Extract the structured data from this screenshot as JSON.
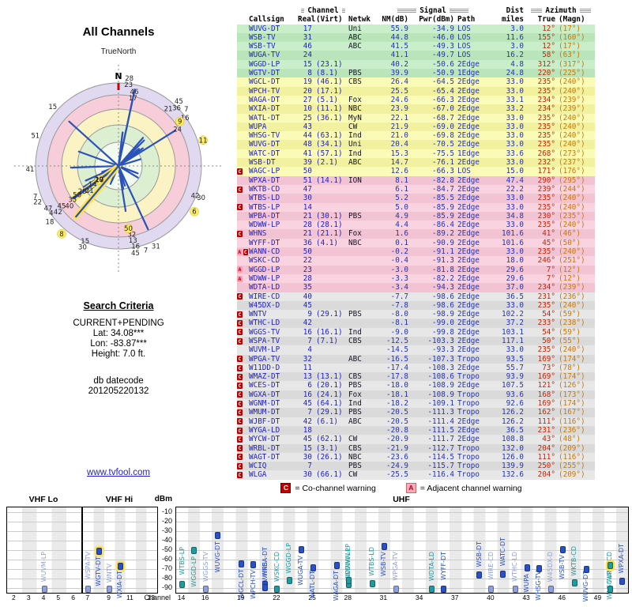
{
  "radar": {
    "title": "All Channels",
    "north_label": "TrueNorth",
    "compass_n": "N",
    "ring_colors": [
      "#e0d9f0",
      "#f6cdd9",
      "#fbf3c4",
      "#dcefd0",
      "#f2f9ee"
    ],
    "spoke_color": "#2a52b8",
    "highlight_color": "#ffe14d"
  },
  "search": {
    "heading": "Search Criteria",
    "mode": "CURRENT+PENDING",
    "lat": "Lat: 34.08***",
    "lon": "Lon: -83.87***",
    "height": "Height: 7.0 ft.",
    "datecode_label": "db datecode",
    "datecode": "201205220132",
    "link": "www.tvfool.com"
  },
  "table": {
    "headers": {
      "channel_group": "Channel",
      "signal_group": "Signal",
      "dist_group": "Dist",
      "azimuth_group": "Azimuth",
      "callsign": "Callsign",
      "real": "Real",
      "virt": "(Virt)",
      "netwk": "Netwk",
      "nm": "NM(dB)",
      "pwr": "Pwr(dBm)",
      "path": "Path",
      "miles": "miles",
      "true_label": "True",
      "magn": "(Magn)"
    },
    "rows": [
      {
        "warn": "",
        "callsign": "WUVG-DT",
        "real": "17",
        "virt": "",
        "netwk": "Uni",
        "nm": "55.9",
        "pwr": "-34.9",
        "path": "LOS",
        "dist": "3.0",
        "true": "12°",
        "magn": "(17°)",
        "tier": "g"
      },
      {
        "warn": "",
        "callsign": "WSB-TV",
        "real": "31",
        "virt": "",
        "netwk": "ABC",
        "nm": "44.8",
        "pwr": "-46.0",
        "path": "LOS",
        "dist": "11.6",
        "true": "155°",
        "magn": "(160°)",
        "tier": "g"
      },
      {
        "warn": "",
        "callsign": "WSB-TV",
        "real": "46",
        "virt": "",
        "netwk": "ABC",
        "nm": "41.5",
        "pwr": "-49.3",
        "path": "LOS",
        "dist": "3.0",
        "true": "12°",
        "magn": "(17°)",
        "tier": "g"
      },
      {
        "warn": "",
        "callsign": "WUGA-TV",
        "real": "24",
        "virt": "",
        "netwk": "",
        "nm": "41.1",
        "pwr": "-49.7",
        "path": "LOS",
        "dist": "16.2",
        "true": "58°",
        "magn": "(63°)",
        "tier": "g"
      },
      {
        "warn": "",
        "callsign": "WGGD-LP",
        "real": "15",
        "virt": "(23.1)",
        "netwk": "",
        "nm": "40.2",
        "pwr": "-50.6",
        "path": "2Edge",
        "dist": "4.8",
        "true": "312°",
        "magn": "(317°)",
        "tier": "g"
      },
      {
        "warn": "",
        "callsign": "WGTV-DT",
        "real": "8",
        "virt": "(8.1)",
        "netwk": "PBS",
        "nm": "39.9",
        "pwr": "-50.9",
        "path": "1Edge",
        "dist": "24.8",
        "true": "220°",
        "magn": "(225°)",
        "tier": "g",
        "hl": true
      },
      {
        "warn": "",
        "callsign": "WGCL-DT",
        "real": "19",
        "virt": "(46.1)",
        "netwk": "CBS",
        "nm": "26.4",
        "pwr": "-64.5",
        "path": "2Edge",
        "dist": "33.0",
        "true": "235°",
        "magn": "(240°)",
        "tier": "y"
      },
      {
        "warn": "",
        "callsign": "WPCH-TV",
        "real": "20",
        "virt": "(17.1)",
        "netwk": "",
        "nm": "25.5",
        "pwr": "-65.4",
        "path": "2Edge",
        "dist": "33.0",
        "true": "235°",
        "magn": "(240°)",
        "tier": "y"
      },
      {
        "warn": "",
        "callsign": "WAGA-DT",
        "real": "27",
        "virt": "(5.1)",
        "netwk": "Fox",
        "nm": "24.6",
        "pwr": "-66.3",
        "path": "2Edge",
        "dist": "33.1",
        "true": "234°",
        "magn": "(239°)",
        "tier": "y"
      },
      {
        "warn": "",
        "callsign": "WXIA-DT",
        "real": "10",
        "virt": "(11.1)",
        "netwk": "NBC",
        "nm": "23.9",
        "pwr": "-67.0",
        "path": "2Edge",
        "dist": "33.2",
        "true": "234°",
        "magn": "(239°)",
        "tier": "y",
        "hl": true
      },
      {
        "warn": "",
        "callsign": "WATL-DT",
        "real": "25",
        "virt": "(36.1)",
        "netwk": "MyN",
        "nm": "22.1",
        "pwr": "-68.7",
        "path": "2Edge",
        "dist": "33.0",
        "true": "235°",
        "magn": "(240°)",
        "tier": "y"
      },
      {
        "warn": "",
        "callsign": "WUPA",
        "real": "43",
        "virt": "",
        "netwk": "CW",
        "nm": "21.9",
        "pwr": "-69.0",
        "path": "2Edge",
        "dist": "33.0",
        "true": "235°",
        "magn": "(240°)",
        "tier": "y"
      },
      {
        "warn": "",
        "callsign": "WHSG-TV",
        "real": "44",
        "virt": "(63.1)",
        "netwk": "Ind",
        "nm": "21.0",
        "pwr": "-69.8",
        "path": "2Edge",
        "dist": "33.0",
        "true": "235°",
        "magn": "(240°)",
        "tier": "y"
      },
      {
        "warn": "",
        "callsign": "WUVG-DT",
        "real": "48",
        "virt": "(34.1)",
        "netwk": "Uni",
        "nm": "20.4",
        "pwr": "-70.5",
        "path": "2Edge",
        "dist": "33.0",
        "true": "235°",
        "magn": "(240°)",
        "tier": "y"
      },
      {
        "warn": "",
        "callsign": "WATC-DT",
        "real": "41",
        "virt": "(57.1)",
        "netwk": "Ind",
        "nm": "15.3",
        "pwr": "-75.5",
        "path": "1Edge",
        "dist": "33.6",
        "true": "268°",
        "magn": "(273°)",
        "tier": "y"
      },
      {
        "warn": "",
        "callsign": "WSB-DT",
        "real": "39",
        "virt": "(2.1)",
        "netwk": "ABC",
        "nm": "14.7",
        "pwr": "-76.1",
        "path": "2Edge",
        "dist": "33.0",
        "true": "232°",
        "magn": "(237°)",
        "tier": "y"
      },
      {
        "warn": "C",
        "callsign": "WAGC-LP",
        "real": "50",
        "virt": "",
        "netwk": "",
        "nm": "12.6",
        "pwr": "-66.3",
        "path": "LOS",
        "dist": "15.0",
        "true": "171°",
        "magn": "(176°)",
        "tier": "y",
        "hl": true
      },
      {
        "warn": "",
        "callsign": "WPXA-DT",
        "real": "51",
        "virt": "(14.1)",
        "netwk": "ION",
        "nm": "8.1",
        "pwr": "-82.8",
        "path": "2Edge",
        "dist": "47.4",
        "true": "290°",
        "magn": "(295°)",
        "tier": "p"
      },
      {
        "warn": "C",
        "callsign": "WKTB-CD",
        "real": "47",
        "virt": "",
        "netwk": "",
        "nm": "6.1",
        "pwr": "-84.7",
        "path": "2Edge",
        "dist": "22.2",
        "true": "239°",
        "magn": "(244°)",
        "tier": "p"
      },
      {
        "warn": "",
        "callsign": "WTBS-LD",
        "real": "30",
        "virt": "",
        "netwk": "",
        "nm": "5.2",
        "pwr": "-85.5",
        "path": "2Edge",
        "dist": "33.0",
        "true": "235°",
        "magn": "(240°)",
        "tier": "p"
      },
      {
        "warn": "C",
        "callsign": "WTBS-LP",
        "real": "14",
        "virt": "",
        "netwk": "",
        "nm": "5.0",
        "pwr": "-85.9",
        "path": "2Edge",
        "dist": "33.0",
        "true": "235°",
        "magn": "(240°)",
        "tier": "p"
      },
      {
        "warn": "",
        "callsign": "WPBA-DT",
        "real": "21",
        "virt": "(30.1)",
        "netwk": "PBS",
        "nm": "4.9",
        "pwr": "-85.9",
        "path": "2Edge",
        "dist": "34.8",
        "true": "230°",
        "magn": "(235°)",
        "tier": "p"
      },
      {
        "warn": "",
        "callsign": "WDWW-LP",
        "real": "28",
        "virt": "(28.1)",
        "netwk": "",
        "nm": "4.4",
        "pwr": "-86.4",
        "path": "2Edge",
        "dist": "33.0",
        "true": "235°",
        "magn": "(240°)",
        "tier": "p"
      },
      {
        "warn": "C",
        "callsign": "WHNS",
        "real": "21",
        "virt": "(21.1)",
        "netwk": "Fox",
        "nm": "1.6",
        "pwr": "-89.2",
        "path": "2Edge",
        "dist": "101.6",
        "true": "41°",
        "magn": "(46°)",
        "tier": "p"
      },
      {
        "warn": "",
        "callsign": "WYFF-DT",
        "real": "36",
        "virt": "(4.1)",
        "netwk": "NBC",
        "nm": "0.1",
        "pwr": "-90.9",
        "path": "2Edge",
        "dist": "101.6",
        "true": "45°",
        "magn": "(50°)",
        "tier": "p"
      },
      {
        "warn": "AC",
        "callsign": "WANN-CD",
        "real": "50",
        "virt": "",
        "netwk": "",
        "nm": "-0.2",
        "pwr": "-91.1",
        "path": "2Edge",
        "dist": "33.0",
        "true": "235°",
        "magn": "(240°)",
        "tier": "p"
      },
      {
        "warn": "",
        "callsign": "WSKC-CD",
        "real": "22",
        "virt": "",
        "netwk": "",
        "nm": "-0.4",
        "pwr": "-91.3",
        "path": "2Edge",
        "dist": "18.0",
        "true": "246°",
        "magn": "(251°)",
        "tier": "p"
      },
      {
        "warn": "A",
        "callsign": "WGGD-LP",
        "real": "23",
        "virt": "",
        "netwk": "",
        "nm": "-3.0",
        "pwr": "-81.8",
        "path": "2Edge",
        "dist": "29.6",
        "true": "7°",
        "magn": "(12°)",
        "tier": "p"
      },
      {
        "warn": "A",
        "callsign": "WDWW-LP",
        "real": "28",
        "virt": "",
        "netwk": "",
        "nm": "-3.3",
        "pwr": "-82.2",
        "path": "2Edge",
        "dist": "29.6",
        "true": "7°",
        "magn": "(12°)",
        "tier": "p"
      },
      {
        "warn": "",
        "callsign": "WDTA-LD",
        "real": "35",
        "virt": "",
        "netwk": "",
        "nm": "-3.4",
        "pwr": "-94.3",
        "path": "2Edge",
        "dist": "37.0",
        "true": "234°",
        "magn": "(239°)",
        "tier": "p"
      },
      {
        "warn": "C",
        "callsign": "WIRE-CD",
        "real": "40",
        "virt": "",
        "netwk": "",
        "nm": "-7.7",
        "pwr": "-98.6",
        "path": "2Edge",
        "dist": "36.5",
        "true": "231°",
        "magn": "(236°)",
        "tier": "gr"
      },
      {
        "warn": "",
        "callsign": "W45DX-D",
        "real": "45",
        "virt": "",
        "netwk": "",
        "nm": "-7.8",
        "pwr": "-98.6",
        "path": "2Edge",
        "dist": "33.0",
        "true": "235°",
        "magn": "(240°)",
        "tier": "gr"
      },
      {
        "warn": "C",
        "callsign": "WNTV",
        "real": "9",
        "virt": "(29.1)",
        "netwk": "PBS",
        "nm": "-8.0",
        "pwr": "-98.9",
        "path": "2Edge",
        "dist": "102.2",
        "true": "54°",
        "magn": "(59°)",
        "tier": "gr",
        "hl": true
      },
      {
        "warn": "C",
        "callsign": "WTHC-LD",
        "real": "42",
        "virt": "",
        "netwk": "",
        "nm": "-8.1",
        "pwr": "-99.0",
        "path": "2Edge",
        "dist": "37.2",
        "true": "233°",
        "magn": "(238°)",
        "tier": "gr"
      },
      {
        "warn": "C",
        "callsign": "WGGS-TV",
        "real": "16",
        "virt": "(16.1)",
        "netwk": "Ind",
        "nm": "-9.0",
        "pwr": "-99.8",
        "path": "2Edge",
        "dist": "103.1",
        "true": "54°",
        "magn": "(59°)",
        "tier": "gr"
      },
      {
        "warn": "C",
        "callsign": "WSPA-TV",
        "real": "7",
        "virt": "(7.1)",
        "netwk": "CBS",
        "nm": "-12.5",
        "pwr": "-103.3",
        "path": "2Edge",
        "dist": "117.1",
        "true": "50°",
        "magn": "(55°)",
        "tier": "gr"
      },
      {
        "warn": "",
        "callsign": "WUVM-LP",
        "real": "4",
        "virt": "",
        "netwk": "",
        "nm": "-14.5",
        "pwr": "-93.3",
        "path": "2Edge",
        "dist": "33.0",
        "true": "235°",
        "magn": "(240°)",
        "tier": "gr"
      },
      {
        "warn": "C",
        "callsign": "WPGA-TV",
        "real": "32",
        "virt": "",
        "netwk": "ABC",
        "nm": "-16.5",
        "pwr": "-107.3",
        "path": "Tropo",
        "dist": "93.5",
        "true": "169°",
        "magn": "(174°)",
        "tier": "gr"
      },
      {
        "warn": "C",
        "callsign": "W11DD-D",
        "real": "11",
        "virt": "",
        "netwk": "",
        "nm": "-17.4",
        "pwr": "-108.3",
        "path": "2Edge",
        "dist": "55.7",
        "true": "73°",
        "magn": "(78°)",
        "tier": "gr",
        "hl": true
      },
      {
        "warn": "C",
        "callsign": "WMAZ-DT",
        "real": "13",
        "virt": "(13.1)",
        "netwk": "CBS",
        "nm": "-17.8",
        "pwr": "-108.6",
        "path": "Tropo",
        "dist": "93.9",
        "true": "169°",
        "magn": "(174°)",
        "tier": "gr"
      },
      {
        "warn": "C",
        "callsign": "WCES-DT",
        "real": "6",
        "virt": "(20.1)",
        "netwk": "PBS",
        "nm": "-18.0",
        "pwr": "-108.9",
        "path": "2Edge",
        "dist": "107.5",
        "true": "121°",
        "magn": "(126°)",
        "tier": "gr",
        "hl": true
      },
      {
        "warn": "C",
        "callsign": "WGXA-DT",
        "real": "16",
        "virt": "(24.1)",
        "netwk": "Fox",
        "nm": "-18.1",
        "pwr": "-108.9",
        "path": "Tropo",
        "dist": "93.6",
        "true": "168°",
        "magn": "(173°)",
        "tier": "gr"
      },
      {
        "warn": "C",
        "callsign": "WGNM-DT",
        "real": "45",
        "virt": "(64.1)",
        "netwk": "Ind",
        "nm": "-18.2",
        "pwr": "-109.1",
        "path": "Tropo",
        "dist": "92.6",
        "true": "169°",
        "magn": "(174°)",
        "tier": "gr"
      },
      {
        "warn": "C",
        "callsign": "WMUM-DT",
        "real": "7",
        "virt": "(29.1)",
        "netwk": "PBS",
        "nm": "-20.5",
        "pwr": "-111.3",
        "path": "Tropo",
        "dist": "126.2",
        "true": "162°",
        "magn": "(167°)",
        "tier": "gr"
      },
      {
        "warn": "C",
        "callsign": "WJBF-DT",
        "real": "42",
        "virt": "(6.1)",
        "netwk": "ABC",
        "nm": "-20.5",
        "pwr": "-111.4",
        "path": "2Edge",
        "dist": "126.2",
        "true": "111°",
        "magn": "(116°)",
        "tier": "gr"
      },
      {
        "warn": "C",
        "callsign": "WYGA-LD",
        "real": "18",
        "virt": "",
        "netwk": "",
        "nm": "-20.8",
        "pwr": "-111.5",
        "path": "2Edge",
        "dist": "36.5",
        "true": "231°",
        "magn": "(236°)",
        "tier": "gr"
      },
      {
        "warn": "C",
        "callsign": "WYCW-DT",
        "real": "45",
        "virt": "(62.1)",
        "netwk": "CW",
        "nm": "-20.9",
        "pwr": "-111.7",
        "path": "2Edge",
        "dist": "108.8",
        "true": "43°",
        "magn": "(48°)",
        "tier": "gr"
      },
      {
        "warn": "C",
        "callsign": "WRBL-DT",
        "real": "15",
        "virt": "(3.1)",
        "netwk": "CBS",
        "nm": "-21.9",
        "pwr": "-112.7",
        "path": "Tropo",
        "dist": "132.0",
        "true": "204°",
        "magn": "(209°)",
        "tier": "gr"
      },
      {
        "warn": "C",
        "callsign": "WAGT-DT",
        "real": "30",
        "virt": "(26.1)",
        "netwk": "NBC",
        "nm": "-23.6",
        "pwr": "-114.5",
        "path": "Tropo",
        "dist": "126.0",
        "true": "111°",
        "magn": "(116°)",
        "tier": "gr"
      },
      {
        "warn": "C",
        "callsign": "WCIQ",
        "real": "7",
        "virt": "",
        "netwk": "PBS",
        "nm": "-24.9",
        "pwr": "-115.7",
        "path": "Tropo",
        "dist": "139.9",
        "true": "250°",
        "magn": "(255°)",
        "tier": "gr"
      },
      {
        "warn": "C",
        "callsign": "WLGA",
        "real": "30",
        "virt": "(66.1)",
        "netwk": "CW",
        "nm": "-25.5",
        "pwr": "-116.4",
        "path": "Tropo",
        "dist": "132.6",
        "true": "204°",
        "magn": "(209°)",
        "tier": "gr"
      }
    ]
  },
  "legend": {
    "c_symbol": "C",
    "c_text": "= Co-channel warning",
    "a_symbol": "A",
    "a_text": "= Adjacent channel warning"
  },
  "spectrum": {
    "dbm_label": "dBm",
    "channel_label": "Channel",
    "y_ticks": [
      -10,
      -20,
      -30,
      -40,
      -50,
      -60,
      -70,
      -80,
      -90
    ],
    "panels": [
      {
        "label": "VHF Lo",
        "ch_min": 2,
        "ch_max": 6,
        "ticks": [
          2,
          3,
          4,
          5,
          6
        ]
      },
      {
        "label": "VHF Hi",
        "ch_min": 7,
        "ch_max": 13,
        "ticks": [
          7,
          9,
          11,
          13
        ]
      },
      {
        "label": "UHF",
        "ch_min": 14,
        "ch_max": 51,
        "ticks": [
          14,
          16,
          19,
          22,
          25,
          28,
          31,
          34,
          37,
          40,
          43,
          46,
          49
        ]
      }
    ],
    "colors": {
      "strong": "#2a50c8",
      "low_power": "#1f9aa0",
      "weak": "#8fa0dc"
    }
  }
}
